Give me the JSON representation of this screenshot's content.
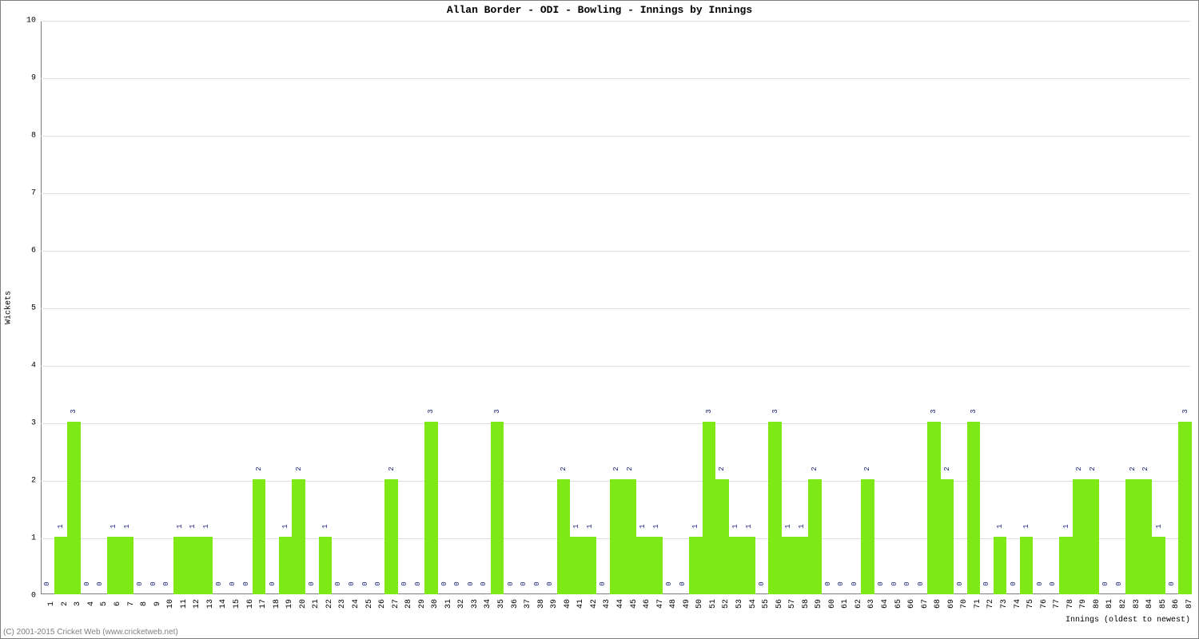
{
  "chart": {
    "type": "bar",
    "title": "Allan Border - ODI - Bowling - Innings by Innings",
    "xlabel": "Innings (oldest to newest)",
    "ylabel": "Wickets",
    "ylim": [
      0,
      10
    ],
    "ytick_step": 1,
    "yticks": [
      0,
      1,
      2,
      3,
      4,
      5,
      6,
      7,
      8,
      9,
      10
    ],
    "bar_color": "#7fe817",
    "bar_label_color": "#1a237e",
    "background_color": "#ffffff",
    "grid_color": "#dddddd",
    "axis_color": "#808080",
    "title_font": "Courier New, monospace",
    "title_fontsize": 13,
    "label_fontsize": 10,
    "tick_fontsize": 10,
    "bar_label_fontsize": 9,
    "categories": [
      1,
      2,
      3,
      4,
      5,
      6,
      7,
      8,
      9,
      10,
      11,
      12,
      13,
      14,
      15,
      16,
      17,
      18,
      19,
      20,
      21,
      22,
      23,
      24,
      25,
      26,
      27,
      28,
      29,
      30,
      31,
      32,
      33,
      34,
      35,
      36,
      37,
      38,
      39,
      40,
      41,
      42,
      43,
      44,
      45,
      46,
      47,
      48,
      49,
      50,
      51,
      52,
      53,
      54,
      55,
      56,
      57,
      58,
      59,
      60,
      61,
      62,
      63,
      64,
      65,
      66,
      67,
      68,
      69,
      70,
      71,
      72,
      73,
      74,
      75,
      76,
      77,
      78,
      79,
      80,
      81,
      82,
      83,
      84,
      85,
      86,
      87
    ],
    "values": [
      0,
      1,
      3,
      0,
      0,
      1,
      1,
      0,
      0,
      0,
      1,
      1,
      1,
      0,
      0,
      0,
      2,
      0,
      1,
      2,
      0,
      1,
      0,
      0,
      0,
      0,
      2,
      0,
      0,
      3,
      0,
      0,
      0,
      0,
      3,
      0,
      0,
      0,
      0,
      2,
      1,
      1,
      0,
      2,
      2,
      1,
      1,
      0,
      0,
      1,
      3,
      2,
      1,
      1,
      0,
      3,
      1,
      1,
      2,
      0,
      0,
      0,
      2,
      0,
      0,
      0,
      0,
      3,
      2,
      0,
      3,
      0,
      1,
      0,
      1,
      0,
      0,
      1,
      2,
      2,
      0,
      0,
      2,
      2,
      1,
      0,
      3
    ],
    "copyright": "(C) 2001-2015 Cricket Web (www.cricketweb.net)"
  }
}
